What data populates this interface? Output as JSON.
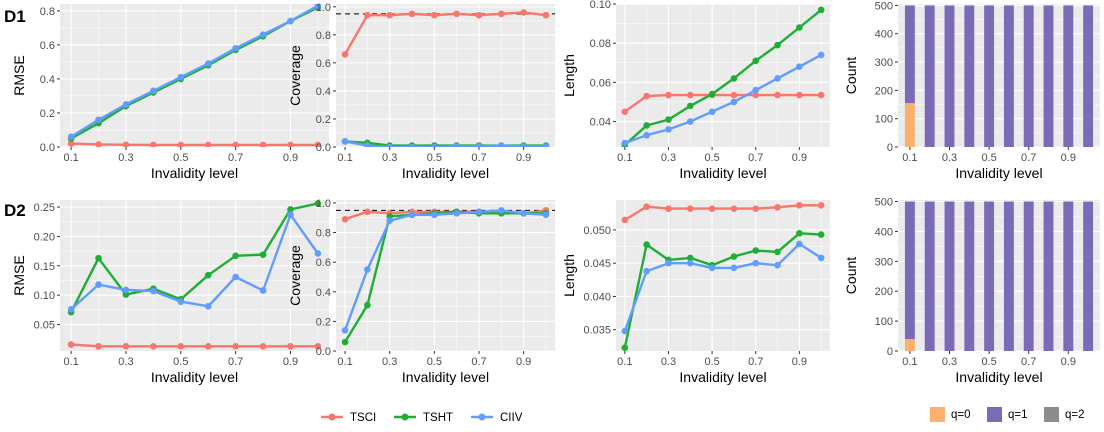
{
  "row_labels": [
    "D1",
    "D2"
  ],
  "line_legend": [
    {
      "name": "TSCI",
      "color": "#F8766D"
    },
    {
      "name": "TSHT",
      "color": "#1EAE34"
    },
    {
      "name": "CIIV",
      "color": "#619CFF"
    }
  ],
  "bar_legend": [
    {
      "name": "q=0",
      "color": "#FDB06C"
    },
    {
      "name": "q=1",
      "color": "#7B6AB5"
    },
    {
      "name": "q=2",
      "color": "#8C8C8C"
    }
  ],
  "chart_data": [
    {
      "id": "D1-RMSE",
      "type": "line",
      "xlabel": "Invalidity level",
      "ylabel": "RMSE",
      "x": [
        0.1,
        0.2,
        0.3,
        0.4,
        0.5,
        0.6,
        0.7,
        0.8,
        0.9,
        1.0
      ],
      "xticks": [
        0.1,
        0.3,
        0.5,
        0.7,
        0.9
      ],
      "xlim": [
        0.1,
        1.0
      ],
      "yticks": [
        0.0,
        0.2,
        0.4,
        0.6,
        0.8
      ],
      "ytick_labels": [
        "0.0",
        "0.2",
        "0.4",
        "0.6",
        "0.8"
      ],
      "ylim": [
        0.0,
        0.84
      ],
      "series": [
        {
          "name": "TSCI",
          "values": [
            0.02,
            0.015,
            0.013,
            0.012,
            0.012,
            0.012,
            0.012,
            0.012,
            0.012,
            0.012
          ]
        },
        {
          "name": "TSHT",
          "values": [
            0.05,
            0.14,
            0.24,
            0.32,
            0.4,
            0.48,
            0.57,
            0.65,
            0.74,
            0.82
          ]
        },
        {
          "name": "CIIV",
          "values": [
            0.06,
            0.16,
            0.25,
            0.33,
            0.41,
            0.49,
            0.58,
            0.66,
            0.74,
            0.83
          ]
        }
      ]
    },
    {
      "id": "D1-Coverage",
      "type": "line",
      "xlabel": "Invalidity level",
      "ylabel": "Coverage",
      "x": [
        0.1,
        0.2,
        0.3,
        0.4,
        0.5,
        0.6,
        0.7,
        0.8,
        0.9,
        1.0
      ],
      "xticks": [
        0.1,
        0.3,
        0.5,
        0.7,
        0.9
      ],
      "xlim": [
        0.1,
        1.0
      ],
      "yticks": [
        0.0,
        0.2,
        0.4,
        0.6,
        0.8,
        1.0
      ],
      "ytick_labels": [
        "0.0",
        "0.2",
        "0.4",
        "0.6",
        "0.8",
        "1.0"
      ],
      "ylim": [
        0.0,
        1.02
      ],
      "hline": 0.95,
      "series": [
        {
          "name": "TSCI",
          "values": [
            0.66,
            0.94,
            0.94,
            0.95,
            0.94,
            0.95,
            0.94,
            0.95,
            0.96,
            0.94
          ]
        },
        {
          "name": "TSHT",
          "values": [
            0.04,
            0.03,
            0.01,
            0.01,
            0.01,
            0.01,
            0.01,
            0.01,
            0.01,
            0.01
          ]
        },
        {
          "name": "CIIV",
          "values": [
            0.04,
            0.01,
            0.0,
            0.0,
            0.0,
            0.005,
            0.005,
            0.01,
            0.005,
            0.005
          ]
        }
      ]
    },
    {
      "id": "D1-Length",
      "type": "line",
      "xlabel": "Invalidity level",
      "ylabel": "Length",
      "x": [
        0.1,
        0.2,
        0.3,
        0.4,
        0.5,
        0.6,
        0.7,
        0.8,
        0.9,
        1.0
      ],
      "xticks": [
        0.1,
        0.3,
        0.5,
        0.7,
        0.9
      ],
      "xlim": [
        0.1,
        1.0
      ],
      "yticks": [
        0.04,
        0.06,
        0.08,
        0.1
      ],
      "ytick_labels": [
        "0.04",
        "0.06",
        "0.08",
        "0.10"
      ],
      "ylim": [
        0.027,
        0.1
      ],
      "series": [
        {
          "name": "TSCI",
          "values": [
            0.045,
            0.053,
            0.0535,
            0.0535,
            0.0535,
            0.0535,
            0.0535,
            0.0535,
            0.0535,
            0.0535
          ]
        },
        {
          "name": "TSHT",
          "values": [
            0.028,
            0.038,
            0.041,
            0.048,
            0.054,
            0.062,
            0.071,
            0.079,
            0.088,
            0.097
          ]
        },
        {
          "name": "CIIV",
          "values": [
            0.029,
            0.033,
            0.036,
            0.04,
            0.045,
            0.05,
            0.056,
            0.062,
            0.068,
            0.074
          ]
        }
      ]
    },
    {
      "id": "D1-Count",
      "type": "bar",
      "stacked": true,
      "xlabel": "Invalidity level",
      "ylabel": "Count",
      "categories": [
        0.1,
        0.2,
        0.3,
        0.4,
        0.5,
        0.6,
        0.7,
        0.8,
        0.9,
        1.0
      ],
      "xticks": [
        0.1,
        0.3,
        0.5,
        0.7,
        0.9
      ],
      "yticks": [
        0,
        100,
        200,
        300,
        400,
        500
      ],
      "ytick_labels": [
        "0",
        "100",
        "200",
        "300",
        "400",
        "500"
      ],
      "ylim": [
        0,
        505
      ],
      "series": [
        {
          "name": "q=0",
          "values": [
            155,
            0,
            0,
            0,
            0,
            0,
            0,
            0,
            0,
            0
          ]
        },
        {
          "name": "q=1",
          "values": [
            345,
            500,
            500,
            500,
            500,
            500,
            500,
            500,
            500,
            500
          ]
        },
        {
          "name": "q=2",
          "values": [
            0,
            0,
            0,
            0,
            0,
            0,
            0,
            0,
            0,
            0
          ]
        }
      ]
    },
    {
      "id": "D2-RMSE",
      "type": "line",
      "xlabel": "Invalidity level",
      "ylabel": "RMSE",
      "x": [
        0.1,
        0.2,
        0.3,
        0.4,
        0.5,
        0.6,
        0.7,
        0.8,
        0.9,
        1.0
      ],
      "xticks": [
        0.1,
        0.3,
        0.5,
        0.7,
        0.9
      ],
      "xlim": [
        0.1,
        1.0
      ],
      "yticks": [
        0.05,
        0.1,
        0.15,
        0.2,
        0.25
      ],
      "ytick_labels": [
        "0.05",
        "0.10",
        "0.15",
        "0.20",
        "0.25"
      ],
      "ylim": [
        0.005,
        0.262
      ],
      "series": [
        {
          "name": "TSCI",
          "values": [
            0.016,
            0.013,
            0.013,
            0.013,
            0.013,
            0.013,
            0.013,
            0.013,
            0.013,
            0.013
          ]
        },
        {
          "name": "TSHT",
          "values": [
            0.071,
            0.163,
            0.101,
            0.111,
            0.093,
            0.134,
            0.167,
            0.169,
            0.246,
            0.256
          ]
        },
        {
          "name": "CIIV",
          "values": [
            0.076,
            0.118,
            0.109,
            0.107,
            0.089,
            0.081,
            0.131,
            0.108,
            0.237,
            0.171
          ]
        }
      ]
    },
    {
      "id": "D2-Coverage",
      "type": "line",
      "xlabel": "Invalidity level",
      "ylabel": "Coverage",
      "x": [
        0.1,
        0.2,
        0.3,
        0.4,
        0.5,
        0.6,
        0.7,
        0.8,
        0.9,
        1.0
      ],
      "xticks": [
        0.1,
        0.3,
        0.5,
        0.7,
        0.9
      ],
      "xlim": [
        0.1,
        1.0
      ],
      "yticks": [
        0.0,
        0.2,
        0.4,
        0.6,
        0.8,
        1.0
      ],
      "ytick_labels": [
        "0.0",
        "0.2",
        "0.4",
        "0.6",
        "0.8",
        "1.0"
      ],
      "ylim": [
        0.0,
        1.02
      ],
      "hline": 0.95,
      "series": [
        {
          "name": "TSCI",
          "values": [
            0.89,
            0.94,
            0.93,
            0.94,
            0.94,
            0.94,
            0.94,
            0.94,
            0.93,
            0.95
          ]
        },
        {
          "name": "TSHT",
          "values": [
            0.06,
            0.31,
            0.91,
            0.92,
            0.93,
            0.94,
            0.93,
            0.93,
            0.93,
            0.93
          ]
        },
        {
          "name": "CIIV",
          "values": [
            0.14,
            0.55,
            0.88,
            0.92,
            0.92,
            0.93,
            0.94,
            0.95,
            0.93,
            0.92
          ]
        }
      ]
    },
    {
      "id": "D2-Length",
      "type": "line",
      "xlabel": "Invalidity level",
      "ylabel": "Length",
      "x": [
        0.1,
        0.2,
        0.3,
        0.4,
        0.5,
        0.6,
        0.7,
        0.8,
        0.9,
        1.0
      ],
      "xticks": [
        0.1,
        0.3,
        0.5,
        0.7,
        0.9
      ],
      "xlim": [
        0.1,
        1.0
      ],
      "yticks": [
        0.035,
        0.04,
        0.045,
        0.05
      ],
      "ytick_labels": [
        "0.035",
        "0.040",
        "0.045",
        "0.050"
      ],
      "ylim": [
        0.0318,
        0.0545
      ],
      "series": [
        {
          "name": "TSCI",
          "values": [
            0.0515,
            0.0535,
            0.0532,
            0.0532,
            0.0532,
            0.0532,
            0.0532,
            0.0534,
            0.0537,
            0.0537
          ]
        },
        {
          "name": "TSHT",
          "values": [
            0.0323,
            0.0478,
            0.0455,
            0.0458,
            0.0447,
            0.046,
            0.0469,
            0.0467,
            0.0495,
            0.0493
          ]
        },
        {
          "name": "CIIV",
          "values": [
            0.0348,
            0.0438,
            0.045,
            0.045,
            0.0443,
            0.0443,
            0.045,
            0.0447,
            0.0479,
            0.0458
          ]
        }
      ]
    },
    {
      "id": "D2-Count",
      "type": "bar",
      "stacked": true,
      "xlabel": "Invalidity level",
      "ylabel": "Count",
      "categories": [
        0.1,
        0.2,
        0.3,
        0.4,
        0.5,
        0.6,
        0.7,
        0.8,
        0.9,
        1.0
      ],
      "xticks": [
        0.1,
        0.3,
        0.5,
        0.7,
        0.9
      ],
      "yticks": [
        0,
        100,
        200,
        300,
        400,
        500
      ],
      "ytick_labels": [
        "0",
        "100",
        "200",
        "300",
        "400",
        "500"
      ],
      "ylim": [
        0,
        505
      ],
      "series": [
        {
          "name": "q=0",
          "values": [
            40,
            0,
            0,
            0,
            0,
            0,
            0,
            0,
            0,
            0
          ]
        },
        {
          "name": "q=1",
          "values": [
            460,
            500,
            500,
            500,
            500,
            500,
            500,
            500,
            500,
            500
          ]
        },
        {
          "name": "q=2",
          "values": [
            0,
            0,
            0,
            0,
            0,
            0,
            0,
            0,
            0,
            0
          ]
        }
      ]
    }
  ]
}
